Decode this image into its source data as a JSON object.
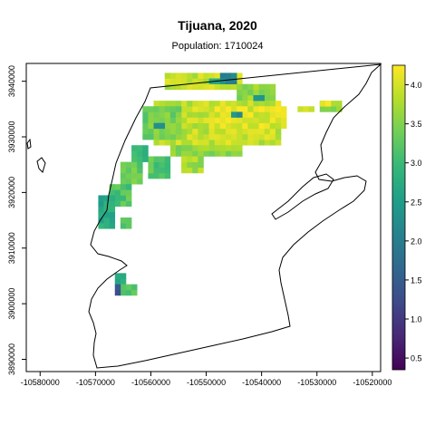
{
  "title": "Tijuana, 2020",
  "subtitle": "Population: 1710024",
  "chart_data": {
    "type": "heatmap",
    "x_ticks": [
      "-10580000",
      "-10570000",
      "-10560000",
      "-10550000",
      "-10540000",
      "-10530000",
      "-10520000"
    ],
    "x_tick_values": [
      -10580000,
      -10570000,
      -10560000,
      -10550000,
      -10540000,
      -10530000,
      -10520000
    ],
    "y_ticks": [
      "3890000",
      "3900000",
      "3910000",
      "3920000",
      "3930000",
      "3940000"
    ],
    "y_tick_values": [
      3890000,
      3900000,
      3910000,
      3920000,
      3930000,
      3940000
    ],
    "xlim": [
      -10582500,
      -10518500
    ],
    "ylim": [
      3887800,
      3943200
    ],
    "cell_size": 1000,
    "colorbar": {
      "ticks": [
        "0.5",
        "1.0",
        "1.5",
        "2.0",
        "2.5",
        "3.0",
        "3.5",
        "4.0"
      ],
      "tick_values": [
        0.5,
        1.0,
        1.5,
        2.0,
        2.5,
        3.0,
        3.5,
        4.0
      ],
      "range": [
        0.35,
        4.25
      ],
      "colors": [
        "#440154",
        "#482878",
        "#3e4a89",
        "#31688e",
        "#26828e",
        "#1f9e89",
        "#35b779",
        "#6ece58",
        "#b5de2b",
        "#fde725"
      ]
    },
    "cells": [
      {
        "id": "r1",
        "x": [
          -10557500,
          -10543500
        ],
        "y": [
          3938500,
          3941500
        ],
        "v": 3.9
      },
      {
        "id": "r2",
        "x": [
          -10544500,
          -10537500
        ],
        "y": [
          3936500,
          3939500
        ],
        "v": 3.6
      },
      {
        "id": "r3",
        "x": [
          -10559500,
          -10536500
        ],
        "y": [
          3928500,
          3936500
        ],
        "v": 3.9
      },
      {
        "id": "r4",
        "x": [
          -10561500,
          -10554500
        ],
        "y": [
          3929500,
          3935500
        ],
        "v": 3.4
      },
      {
        "id": "r5",
        "x": [
          -10548500,
          -10535500
        ],
        "y": [
          3931500,
          3935500
        ],
        "v": 4.05
      },
      {
        "id": "r6",
        "x": [
          -10556500,
          -10543500
        ],
        "y": [
          3926500,
          3928500
        ],
        "v": 3.6
      },
      {
        "id": "r7",
        "x": [
          -10554500,
          -10550500
        ],
        "y": [
          3923500,
          3926500
        ],
        "v": 3.7
      },
      {
        "id": "r8",
        "x": [
          -10560500,
          -10556500
        ],
        "y": [
          3922500,
          3926500
        ],
        "v": 3.2
      },
      {
        "id": "r9",
        "x": [
          -10565500,
          -10561500
        ],
        "y": [
          3921500,
          3925500
        ],
        "v": 3.3
      },
      {
        "id": "r10",
        "x": [
          -10563500,
          -10560500
        ],
        "y": [
          3925500,
          3928500
        ],
        "v": 3.0
      },
      {
        "id": "r11",
        "x": [
          -10567500,
          -10563500
        ],
        "y": [
          3917500,
          3921500
        ],
        "v": 3.2
      },
      {
        "id": "r12",
        "x": [
          -10569500,
          -10566500
        ],
        "y": [
          3913500,
          3919500
        ],
        "v": 2.7
      },
      {
        "id": "r13",
        "x": [
          -10565500,
          -10563500
        ],
        "y": [
          3913500,
          3915500
        ],
        "v": 3.1
      },
      {
        "id": "r14",
        "x": [
          -10533500,
          -10530500
        ],
        "y": [
          3934500,
          3935500
        ],
        "v": 3.8
      },
      {
        "id": "r15",
        "x": [
          -10529500,
          -10525500
        ],
        "y": [
          3934500,
          3936500
        ],
        "v": 3.6
      },
      {
        "id": "r16",
        "x": [
          -10529500,
          -10527500
        ],
        "y": [
          3935500,
          3936500
        ],
        "v": 4.1
      },
      {
        "id": "r17",
        "x": [
          -10547500,
          -10544500
        ],
        "y": [
          3939500,
          3941500
        ],
        "v": 2.2
      },
      {
        "id": "r18",
        "x": [
          -10549500,
          -10547500
        ],
        "y": [
          3939500,
          3940500
        ],
        "v": 2.6
      },
      {
        "id": "r19",
        "x": [
          -10559500,
          -10557500
        ],
        "y": [
          3931500,
          3932500
        ],
        "v": 2.1
      },
      {
        "id": "r20",
        "x": [
          -10545500,
          -10543500
        ],
        "y": [
          3933500,
          3934500
        ],
        "v": 2.3
      },
      {
        "id": "r21",
        "x": [
          -10541500,
          -10539500
        ],
        "y": [
          3936500,
          3937500
        ],
        "v": 2.4
      },
      {
        "id": "r22",
        "x": [
          -10566500,
          -10564500
        ],
        "y": [
          3903500,
          3905500
        ],
        "v": 2.7
      },
      {
        "id": "r23",
        "x": [
          -10565500,
          -10562500
        ],
        "y": [
          3901500,
          3903500
        ],
        "v": 3.2
      },
      {
        "id": "r24",
        "x": [
          -10566500,
          -10565500
        ],
        "y": [
          3901500,
          3903500
        ],
        "v": 1.4
      }
    ]
  }
}
